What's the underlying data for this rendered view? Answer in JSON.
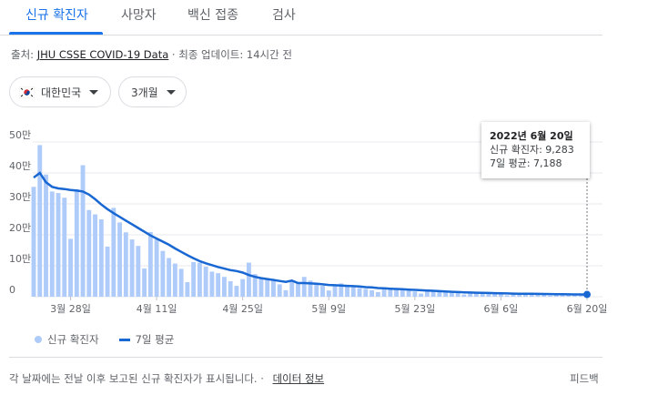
{
  "tabs": [
    {
      "label": "신규 확진자",
      "active": true
    },
    {
      "label": "사망자",
      "active": false
    },
    {
      "label": "백신 접종",
      "active": false
    },
    {
      "label": "검사",
      "active": false
    }
  ],
  "source": {
    "prefix": "출처:",
    "link": "JHU CSSE COVID-19 Data",
    "suffix": "· 최종 업데이트: 14시간 전"
  },
  "filters": {
    "country": "대한민국",
    "country_flag": "korea-flag-icon",
    "range": "3개월"
  },
  "tooltip": {
    "date": "2022년 6월 20일",
    "cases_line": "신규 확진자: 9,283",
    "avg_line": "7일 평균: 7,188"
  },
  "legend": {
    "bars": "신규 확진자",
    "line": "7일 평균"
  },
  "footnote": {
    "text": "각 날짜에는 전날 이후 보고된 신규 확진자가 표시됩니다.",
    "dot": "·",
    "link": "데이터 정보"
  },
  "feedback": "피드백",
  "colors": {
    "accent": "#1a73e8",
    "bar": "#aecbfa",
    "line": "#1967d2"
  },
  "chart_data": {
    "type": "bar",
    "title": "",
    "xlabel": "",
    "ylabel": "",
    "ylim": [
      0,
      500000
    ],
    "y_ticks": [
      {
        "value": 0,
        "label": "0"
      },
      {
        "value": 100000,
        "label": "10만"
      },
      {
        "value": 200000,
        "label": "20만"
      },
      {
        "value": 300000,
        "label": "30만"
      },
      {
        "value": 400000,
        "label": "40만"
      },
      {
        "value": 500000,
        "label": "50만"
      }
    ],
    "x_ticks": [
      {
        "index": 6,
        "label": "3월 28일"
      },
      {
        "index": 20,
        "label": "4월 11일"
      },
      {
        "index": 34,
        "label": "4월 25일"
      },
      {
        "index": 48,
        "label": "5월 9일"
      },
      {
        "index": 62,
        "label": "5월 23일"
      },
      {
        "index": 76,
        "label": "6월 6일"
      },
      {
        "index": 90,
        "label": "6월 20일"
      }
    ],
    "grid": true,
    "series": [
      {
        "name": "신규 확진자",
        "type": "bar",
        "values": [
          355000,
          490000,
          395000,
          340000,
          335000,
          320000,
          187000,
          347000,
          425000,
          280000,
          266000,
          250000,
          162000,
          287000,
          240000,
          208000,
          185000,
          164000,
          91000,
          209000,
          185000,
          148000,
          125000,
          107000,
          90000,
          47000,
          112000,
          110000,
          97000,
          81000,
          76000,
          64000,
          50000,
          35000,
          57000,
          110000,
          73000,
          63000,
          58000,
          51000,
          40000,
          21000,
          50000,
          43000,
          64000,
          52000,
          45000,
          35000,
          20000,
          40000,
          43000,
          35000,
          31000,
          28000,
          25000,
          21000,
          15000,
          29000,
          28000,
          24000,
          21000,
          19000,
          17000,
          10000,
          23000,
          19000,
          17000,
          15000,
          13000,
          12000,
          7000,
          16000,
          14000,
          12000,
          11000,
          10000,
          9000,
          4500,
          13000,
          10000,
          9000,
          8000,
          7000,
          6500,
          3500,
          10000,
          9000,
          7500,
          7000,
          6500,
          9283
        ]
      },
      {
        "name": "7일 평균",
        "type": "line",
        "values": [
          385000,
          400000,
          370000,
          355000,
          350000,
          348000,
          345000,
          343000,
          340000,
          330000,
          315000,
          298000,
          283000,
          270000,
          258000,
          246000,
          234000,
          222000,
          210000,
          198000,
          188000,
          178000,
          168000,
          156000,
          145000,
          134000,
          124000,
          115000,
          108000,
          102000,
          96000,
          91000,
          86000,
          83000,
          78000,
          70000,
          64000,
          60000,
          57000,
          54000,
          51000,
          48000,
          52000,
          44000,
          44000,
          43000,
          42000,
          40000,
          38000,
          37000,
          36000,
          35000,
          34000,
          33000,
          31000,
          30000,
          28000,
          27000,
          26000,
          25000,
          24000,
          23000,
          22000,
          21000,
          20000,
          19000,
          18000,
          17000,
          16000,
          15000,
          14000,
          13500,
          13000,
          12500,
          12000,
          11500,
          11000,
          10500,
          10000,
          9800,
          9600,
          9400,
          9000,
          8700,
          8400,
          8100,
          7900,
          7600,
          7400,
          7300,
          7188
        ]
      }
    ],
    "highlight_index": 90
  }
}
